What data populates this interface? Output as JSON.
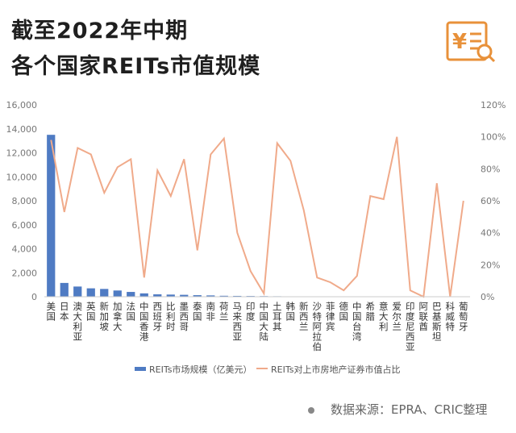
{
  "header": {
    "title_line1": "截至2022年中期",
    "title_line2": "各个国家REITs市值规模"
  },
  "source": "数据来源：EPRA、CRIC整理",
  "chart_data": {
    "type": "bar+line",
    "categories": [
      "美国",
      "日本",
      "澳大利亚",
      "英国",
      "新加坡",
      "加拿大",
      "法国",
      "中国香港",
      "西班牙",
      "比利时",
      "墨西哥",
      "泰国",
      "南非",
      "荷兰",
      "马来西亚",
      "印度",
      "中国大陆",
      "土耳其",
      "韩国",
      "新西兰",
      "沙特阿拉伯",
      "菲律宾",
      "德国",
      "中国台湾",
      "希腊",
      "意大利",
      "爱尔兰",
      "印度尼西亚",
      "阿联酋",
      "巴基斯坦",
      "科威特",
      "葡萄牙"
    ],
    "series": [
      {
        "name": "REITs市场规模（亿美元）",
        "type": "bar",
        "axis": "left",
        "color": "#4f7bc3",
        "values": [
          13500,
          1150,
          850,
          700,
          650,
          520,
          400,
          280,
          200,
          180,
          160,
          130,
          110,
          80,
          70,
          60,
          50,
          40,
          30,
          30,
          20,
          20,
          15,
          15,
          15,
          10,
          10,
          10,
          5,
          5,
          5,
          5
        ]
      },
      {
        "name": "REITs对上市房地产证券市值占比",
        "type": "line",
        "axis": "right",
        "color": "#f0aa8a",
        "values": [
          98,
          53,
          93,
          89,
          65,
          81,
          86,
          12,
          79,
          63,
          86,
          29,
          89,
          99,
          40,
          16,
          2,
          96,
          85,
          54,
          12,
          9,
          4,
          13,
          63,
          61,
          100,
          4,
          0,
          71,
          0,
          60
        ]
      }
    ],
    "y_left": {
      "min": 0,
      "max": 16000,
      "ticks": [
        "0",
        "2,000",
        "4,000",
        "6,000",
        "8,000",
        "10,000",
        "12,000",
        "14,000",
        "16,000"
      ]
    },
    "y_right": {
      "min": 0,
      "max": 120,
      "ticks": [
        "0%",
        "20%",
        "40%",
        "60%",
        "80%",
        "100%",
        "120%"
      ]
    },
    "grid": false,
    "legend_position": "bottom"
  }
}
